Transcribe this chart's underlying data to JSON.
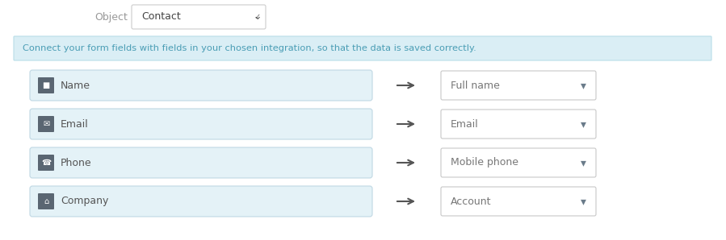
{
  "bg_color": "#ffffff",
  "object_label": "Object",
  "object_value": "Contact",
  "info_text": "Connect your form fields with fields in your chosen integration, so that the data is saved correctly.",
  "info_bg": "#daeef5",
  "info_border": "#b8dde8",
  "info_text_color": "#4a9db5",
  "rows": [
    {
      "label": "Name",
      "right": "Full name"
    },
    {
      "label": "Email",
      "right": "Email"
    },
    {
      "label": "Phone",
      "right": "Mobile phone"
    },
    {
      "label": "Company",
      "right": "Account"
    }
  ],
  "left_box_bg": "#e4f2f7",
  "left_box_border": "#c0d8e4",
  "right_box_bg": "#ffffff",
  "right_box_border": "#c8c8c8",
  "field_text_color": "#555555",
  "arrow_color": "#555555",
  "dropdown_arrow": "▾",
  "label_color": "#999999",
  "object_border": "#cccccc",
  "icon_bg": "#444444",
  "icon_colors": [
    "#555555",
    "#444444",
    "#444444",
    "#444444"
  ]
}
